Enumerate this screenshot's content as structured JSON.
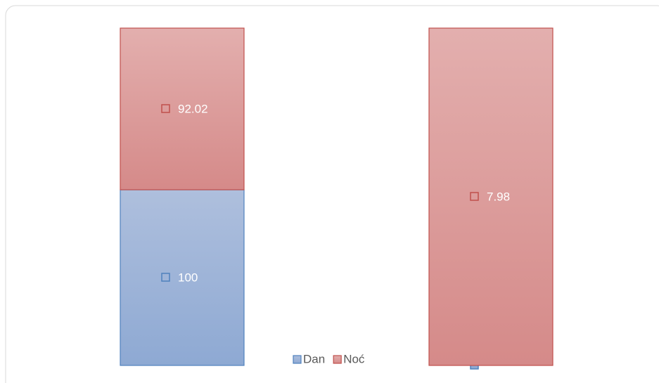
{
  "chart_data": {
    "type": "bar",
    "stacking": "percent",
    "categories": [
      null,
      null
    ],
    "series": [
      {
        "name": "Dan",
        "color": "#4f81bd",
        "values": [
          100,
          0
        ]
      },
      {
        "name": "Noć",
        "color": "#c0504d",
        "values": [
          92.02,
          7.98
        ]
      }
    ],
    "data_labels": true,
    "legend": "bottom"
  }
}
